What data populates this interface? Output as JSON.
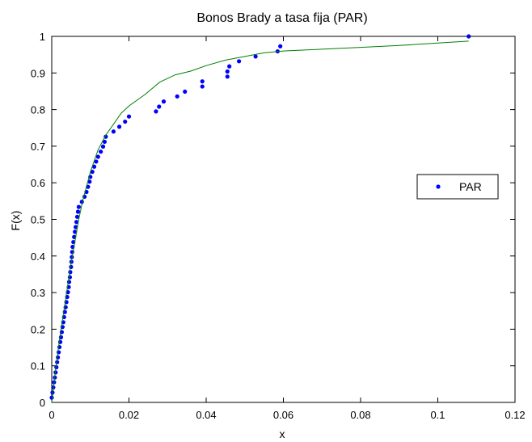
{
  "chart_data": {
    "type": "scatter",
    "title": "Bonos Brady a tasa fija (PAR)",
    "xlabel": "x",
    "ylabel": "F(x)",
    "xlim": [
      0,
      0.12
    ],
    "ylim": [
      0,
      1
    ],
    "xticks": [
      0,
      0.02,
      0.04,
      0.06,
      0.08,
      0.1,
      0.12
    ],
    "xtick_labels": [
      "0",
      "0.02",
      "0.04",
      "0.06",
      "0.08",
      "0.1",
      "0.12"
    ],
    "yticks": [
      0,
      0.1,
      0.2,
      0.3,
      0.4,
      0.5,
      0.6,
      0.7,
      0.8,
      0.9,
      1
    ],
    "ytick_labels": [
      "0",
      "0.1",
      "0.2",
      "0.3",
      "0.4",
      "0.5",
      "0.6",
      "0.7",
      "0.8",
      "0.9",
      "1"
    ],
    "grid": false,
    "legend_position": "center-right",
    "series": [
      {
        "name": "PAR",
        "kind": "points",
        "color": "#0000ff",
        "x": [
          0.0,
          0.0002,
          0.0004,
          0.0006,
          0.0008,
          0.001,
          0.0012,
          0.0014,
          0.0016,
          0.0018,
          0.002,
          0.0022,
          0.0024,
          0.0026,
          0.0028,
          0.003,
          0.0032,
          0.0034,
          0.0036,
          0.0038,
          0.004,
          0.0042,
          0.0044,
          0.0045,
          0.0047,
          0.0048,
          0.005,
          0.0051,
          0.0052,
          0.0053,
          0.0054,
          0.0056,
          0.0058,
          0.006,
          0.0062,
          0.0064,
          0.0066,
          0.0068,
          0.007,
          0.0078,
          0.0085,
          0.009,
          0.0094,
          0.0098,
          0.01,
          0.0105,
          0.011,
          0.0115,
          0.012,
          0.0127,
          0.0133,
          0.0137,
          0.014,
          0.016,
          0.0175,
          0.019,
          0.02,
          0.027,
          0.0278,
          0.029,
          0.0325,
          0.0345,
          0.039,
          0.039,
          0.0455,
          0.0455,
          0.046,
          0.0485,
          0.0528,
          0.0585,
          0.0592,
          0.108
        ],
        "y": [
          0.013,
          0.027,
          0.041,
          0.055,
          0.068,
          0.082,
          0.096,
          0.11,
          0.123,
          0.137,
          0.151,
          0.165,
          0.178,
          0.192,
          0.206,
          0.219,
          0.233,
          0.247,
          0.26,
          0.274,
          0.288,
          0.301,
          0.315,
          0.329,
          0.342,
          0.356,
          0.37,
          0.384,
          0.397,
          0.411,
          0.425,
          0.438,
          0.452,
          0.466,
          0.479,
          0.493,
          0.507,
          0.521,
          0.534,
          0.548,
          0.562,
          0.575,
          0.589,
          0.603,
          0.616,
          0.63,
          0.644,
          0.658,
          0.671,
          0.685,
          0.699,
          0.712,
          0.726,
          0.74,
          0.753,
          0.767,
          0.781,
          0.795,
          0.808,
          0.822,
          0.836,
          0.849,
          0.863,
          0.877,
          0.89,
          0.904,
          0.918,
          0.932,
          0.945,
          0.959,
          0.973,
          1.0
        ]
      },
      {
        "kind": "line",
        "color": "#008000",
        "x": [
          0.0,
          0.001,
          0.002,
          0.003,
          0.004,
          0.005,
          0.006,
          0.007,
          0.008,
          0.009,
          0.01,
          0.012,
          0.014,
          0.016,
          0.018,
          0.02,
          0.024,
          0.028,
          0.032,
          0.036,
          0.04,
          0.045,
          0.05,
          0.055,
          0.06,
          0.07,
          0.08,
          0.09,
          0.1,
          0.108
        ],
        "y": [
          0.0,
          0.09,
          0.17,
          0.24,
          0.31,
          0.38,
          0.44,
          0.5,
          0.55,
          0.59,
          0.63,
          0.69,
          0.73,
          0.76,
          0.79,
          0.81,
          0.84,
          0.875,
          0.895,
          0.905,
          0.92,
          0.935,
          0.945,
          0.955,
          0.96,
          0.965,
          0.97,
          0.975,
          0.982,
          0.987
        ]
      }
    ]
  }
}
